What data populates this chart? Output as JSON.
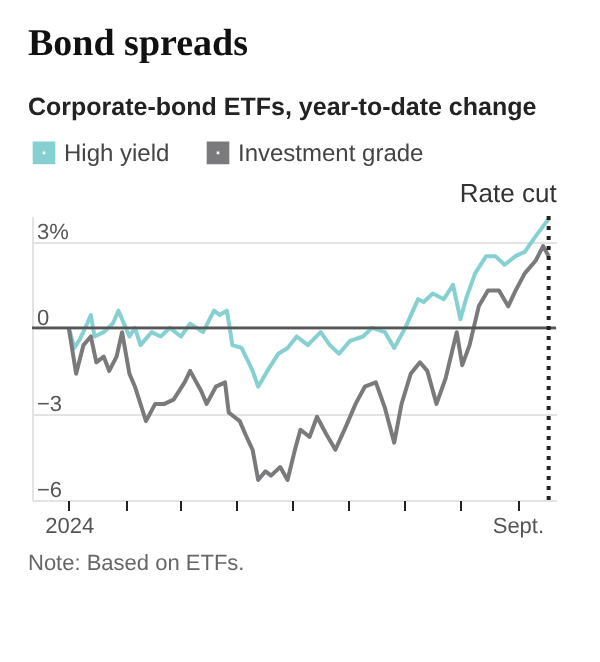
{
  "chart_data": {
    "type": "line",
    "title": "Bond spreads",
    "subtitle": "Corporate-bond ETFs, year-to-date change",
    "series": [
      {
        "name": "High yield",
        "color": "#86d0d2",
        "x": [
          "2024-01-01",
          "2024-01-04",
          "2024-01-07",
          "2024-01-11",
          "2024-01-13",
          "2024-01-15",
          "2024-01-20",
          "2024-01-25",
          "2024-01-28",
          "2024-01-30",
          "2024-02-03",
          "2024-02-06",
          "2024-02-09",
          "2024-02-15",
          "2024-02-20",
          "2024-02-25",
          "2024-03-02",
          "2024-03-07",
          "2024-03-14",
          "2024-03-20",
          "2024-03-23",
          "2024-03-27",
          "2024-03-30",
          "2024-04-04",
          "2024-04-10",
          "2024-04-13",
          "2024-04-18",
          "2024-04-24",
          "2024-04-29",
          "2024-05-04",
          "2024-05-10",
          "2024-05-17",
          "2024-05-22",
          "2024-05-27",
          "2024-06-02",
          "2024-06-09",
          "2024-06-14",
          "2024-06-21",
          "2024-06-26",
          "2024-07-02",
          "2024-07-09",
          "2024-07-12",
          "2024-07-17",
          "2024-07-23",
          "2024-07-28",
          "2024-08-01",
          "2024-08-04",
          "2024-08-09",
          "2024-08-15",
          "2024-08-20",
          "2024-08-25",
          "2024-08-31",
          "2024-09-05",
          "2024-09-11",
          "2024-09-18"
        ],
        "values": [
          0,
          -0.7,
          -0.4,
          0.15,
          0.45,
          -0.3,
          -0.15,
          0.15,
          0.6,
          0.3,
          -0.3,
          0,
          -0.6,
          -0.15,
          -0.3,
          0,
          -0.3,
          0.15,
          -0.15,
          0.6,
          0.45,
          0.6,
          -0.6,
          -0.7,
          -1.5,
          -2.05,
          -1.5,
          -0.9,
          -0.7,
          -0.3,
          -0.6,
          -0.15,
          -0.6,
          -0.9,
          -0.45,
          -0.3,
          0,
          -0.15,
          -0.7,
          0,
          1.0,
          0.9,
          1.2,
          1.0,
          1.5,
          0.3,
          1.0,
          1.9,
          2.5,
          2.5,
          2.2,
          2.5,
          2.65,
          3.2,
          3.8
        ]
      },
      {
        "name": "Investment grade",
        "color": "#7a7a7c",
        "x": [
          "2024-01-01",
          "2024-01-04",
          "2024-01-05",
          "2024-01-09",
          "2024-01-13",
          "2024-01-16",
          "2024-01-20",
          "2024-01-23",
          "2024-01-27",
          "2024-01-30",
          "2024-02-03",
          "2024-02-06",
          "2024-02-09",
          "2024-02-12",
          "2024-02-17",
          "2024-02-22",
          "2024-02-27",
          "2024-03-04",
          "2024-03-07",
          "2024-03-13",
          "2024-03-16",
          "2024-03-21",
          "2024-03-26",
          "2024-03-28",
          "2024-04-03",
          "2024-04-06",
          "2024-04-10",
          "2024-04-13",
          "2024-04-17",
          "2024-04-20",
          "2024-04-25",
          "2024-04-29",
          "2024-05-03",
          "2024-05-06",
          "2024-05-11",
          "2024-05-15",
          "2024-05-20",
          "2024-05-25",
          "2024-05-31",
          "2024-06-05",
          "2024-06-10",
          "2024-06-16",
          "2024-06-21",
          "2024-06-26",
          "2024-06-30",
          "2024-07-05",
          "2024-07-10",
          "2024-07-14",
          "2024-07-19",
          "2024-07-24",
          "2024-07-30",
          "2024-08-02",
          "2024-08-06",
          "2024-08-11",
          "2024-08-16",
          "2024-08-22",
          "2024-08-27",
          "2024-08-31",
          "2024-09-05",
          "2024-09-11",
          "2024-09-15",
          "2024-09-18"
        ],
        "values": [
          0,
          -1.2,
          -1.6,
          -0.6,
          -0.3,
          -1.2,
          -1.0,
          -1.5,
          -1.0,
          -0.15,
          -1.6,
          -2.05,
          -2.65,
          -3.25,
          -2.65,
          -2.65,
          -2.5,
          -1.9,
          -1.5,
          -2.2,
          -2.65,
          -2.05,
          -1.9,
          -2.95,
          -3.25,
          -3.7,
          -4.25,
          -5.3,
          -5.0,
          -5.15,
          -4.85,
          -5.3,
          -4.25,
          -3.55,
          -3.8,
          -3.1,
          -3.7,
          -4.25,
          -3.4,
          -2.65,
          -2.05,
          -1.9,
          -2.8,
          -4.0,
          -2.65,
          -1.6,
          -1.2,
          -1.5,
          -2.65,
          -1.75,
          -0.15,
          -1.3,
          -0.6,
          0.75,
          1.3,
          1.3,
          0.75,
          1.3,
          1.9,
          2.35,
          2.85,
          2.5
        ]
      }
    ],
    "xlim": [
      "2023-12-12",
      "2024-09-22"
    ],
    "xticks": [
      {
        "value": "2024-01-01",
        "label": "2024"
      },
      {
        "value": "2024-02-01",
        "label": null
      },
      {
        "value": "2024-03-01",
        "label": null
      },
      {
        "value": "2024-04-01",
        "label": null
      },
      {
        "value": "2024-05-01",
        "label": null
      },
      {
        "value": "2024-06-01",
        "label": null
      },
      {
        "value": "2024-07-01",
        "label": null
      },
      {
        "value": "2024-08-01",
        "label": null
      },
      {
        "value": "2024-09-01",
        "label": "Sept."
      }
    ],
    "ylim": [
      -6,
      3.9
    ],
    "yticks": [
      -6,
      -3,
      0,
      {
        "value": 3,
        "label": "3%"
      }
    ],
    "grid": "y",
    "legend": "top left",
    "ref_lines": [
      {
        "axis": "y",
        "value": 0,
        "color": "#555555",
        "line_style": "solid"
      },
      {
        "axis": "x",
        "value": "2024-09-18",
        "label": "Rate cut",
        "color": "#222222",
        "line_style": "dotted"
      }
    ],
    "annotations": [
      "Note: Based on ETFs."
    ]
  }
}
